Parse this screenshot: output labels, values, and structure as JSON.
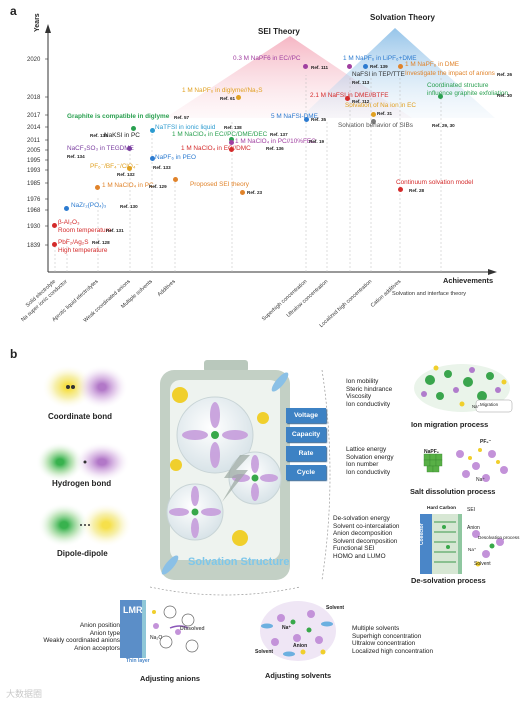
{
  "panel_a": {
    "label": "a",
    "y_axis_label": "Years",
    "x_axis_label": "Achievements",
    "sei_theory_label": "SEI Theory",
    "solvation_theory_label": "Solvation Theory",
    "x_right_label": "Solvation and interface theory",
    "years": [
      "2020",
      "2018",
      "2017",
      "2014",
      "2011",
      "2005",
      "1995",
      "1993",
      "1985",
      "1976",
      "1968",
      "1930",
      "1839"
    ],
    "x_categories": [
      "Solid electrolyte",
      "Na super ionic conductor",
      "Aprotic liquid electrolytes",
      "Weak coordinated anions",
      "Multiple solvents",
      "Additives",
      "Superhigh concentration",
      "Ultralow concentration",
      "Localized high concentration",
      "Cation additives"
    ],
    "events": [
      {
        "text": "β-Al₂O₃",
        "color": "#d42b2b"
      },
      {
        "text": "Room temperature",
        "color": "#d42b2b"
      },
      {
        "text": "PbF₂/Ag₂S",
        "color": "#d42b2b"
      },
      {
        "text": "High temperature",
        "color": "#d42b2b"
      },
      {
        "text": "Ref. 128",
        "color": "#222"
      },
      {
        "text": "Ref. 131",
        "color": "#222"
      },
      {
        "text": "NaZr₂(PO₄)₃",
        "color": "#2c7bd0"
      },
      {
        "text": "Ref. 130",
        "color": "#222"
      },
      {
        "text": "1 M NaClO₄ in PC",
        "color": "#e0832a"
      },
      {
        "text": "Ref. 129",
        "color": "#222"
      },
      {
        "text": "PF₆⁻/BF₄⁻/ClO₄⁻",
        "color": "#e0a020"
      },
      {
        "text": "Ref. 132",
        "color": "#222"
      },
      {
        "text": "NaCF₃SO₃ in TEGDME",
        "color": "#7b3fa0"
      },
      {
        "text": "Ref. 134",
        "color": "#222"
      },
      {
        "text": "NaKSI in PC",
        "color": "#222"
      },
      {
        "text": "Ref. 135",
        "color": "#222"
      },
      {
        "text": "Graphite is compatible in diglyme",
        "color": "#2aa050"
      },
      {
        "text": "Ref. 57",
        "color": "#222"
      },
      {
        "text": "NaTFSI in ionic liquid",
        "color": "#2c9bd0"
      },
      {
        "text": "Ref. 138",
        "color": "#222"
      },
      {
        "text": "1 M NaClO₄ in EC//PC/DME/DEC",
        "color": "#2aa050"
      },
      {
        "text": "Ref. 137",
        "color": "#222"
      },
      {
        "text": "1 M NaClO₄ in PC//10%FEC",
        "color": "#a03fa0"
      },
      {
        "text": "Ref. 19",
        "color": "#222"
      },
      {
        "text": "1 M NaClO₄ in EC//DMC",
        "color": "#d42b2b"
      },
      {
        "text": "Ref. 136",
        "color": "#222"
      },
      {
        "text": "NaPF₆ in PEO",
        "color": "#2c7bd0"
      },
      {
        "text": "Ref. 133",
        "color": "#222"
      },
      {
        "text": "Proposed SEI theory",
        "color": "#e0832a"
      },
      {
        "text": "Ref. 23",
        "color": "#222"
      },
      {
        "text": "1 M NaPF₆ in diglyme//Na₃S",
        "color": "#e0a020"
      },
      {
        "text": "Ref. 61",
        "color": "#222"
      },
      {
        "text": "0.3 M NaPF6 in EC//PC",
        "color": "#a03fa0"
      },
      {
        "text": "Ref. 111",
        "color": "#222"
      },
      {
        "text": "5 M NaFSI-DME",
        "color": "#2c7bd0"
      },
      {
        "text": "Ref. 35",
        "color": "#222"
      },
      {
        "text": "1 M NaPF₆ in LiPF₆+DME",
        "color": "#2c7bd0"
      },
      {
        "text": "Ref. 139",
        "color": "#222"
      },
      {
        "text": "NaFSI in TEP/TTE",
        "color": "#333"
      },
      {
        "text": "Ref. 113",
        "color": "#222"
      },
      {
        "text": "1 M NaPF₆ in DME",
        "color": "#e0832a"
      },
      {
        "text": "Investigate the impact of anions",
        "color": "#e0832a"
      },
      {
        "text": "Ref. 26",
        "color": "#222"
      },
      {
        "text": "2.1 M NaFSI in DME//BTFE",
        "color": "#d42b2b"
      },
      {
        "text": "Ref. 112",
        "color": "#222"
      },
      {
        "text": "Coordinated structure",
        "color": "#2aa050"
      },
      {
        "text": "influence graphite exfoliation",
        "color": "#2aa050"
      },
      {
        "text": "Ref. 30",
        "color": "#222"
      },
      {
        "text": "Solvation of Na ion in EC",
        "color": "#e0a020"
      },
      {
        "text": "Ref. 31",
        "color": "#222"
      },
      {
        "text": "Solvation behavior of SIBs",
        "color": "#555"
      },
      {
        "text": "Ref. 29, 30",
        "color": "#222"
      },
      {
        "text": "Continuum solvation model",
        "color": "#d42b2b"
      },
      {
        "text": "Ref. 28",
        "color": "#222"
      }
    ]
  },
  "panel_b": {
    "label": "b",
    "bonds": [
      "Coordinate bond",
      "Hydrogen bond",
      "Dipole-dipole"
    ],
    "center_label": "Solvation Structure",
    "tabs": [
      "Voltage",
      "Capacity",
      "Rate",
      "Cycle"
    ],
    "migration": {
      "list": [
        "Ion mobility",
        "Steric hindrance",
        "Viscosity",
        "Ion conductivity"
      ],
      "title": "Ion migration process",
      "inset": "Migration",
      "na": "Na⁺"
    },
    "dissolution": {
      "list": [
        "Lattice energy",
        "Solvation energy",
        "Ion number",
        "Ion conductivity"
      ],
      "title": "Salt dissolution process",
      "salt": "NaPF₆",
      "anion": "PF₆⁻",
      "cation": "Na⁺"
    },
    "desolvation": {
      "list": [
        "De-solvation energy",
        "Solvent co-intercalation",
        "Anion decomposition",
        "Solvent decomposition",
        "Functional SEI",
        "HOMO and LUMO"
      ],
      "title": "De-solvation process",
      "hard_carbon": "Hard Carbon",
      "collector": "Collector",
      "sei": "SEI",
      "anion": "Anion",
      "process": "Desolvation process",
      "na": "Na⁺",
      "solvent": "Solvent"
    },
    "anions": {
      "list": [
        "Anion position",
        "Anion type",
        "Weakly coordinated anions",
        "Anion acceptors"
      ],
      "title": "Adjusting anions",
      "lmr": "LMR",
      "thin_layer": "Thin layer",
      "dissolved": "Dissolved",
      "na2o": "Na₂O"
    },
    "solvents": {
      "list": [
        "Multiple solvents",
        "Superhigh concentration",
        "Ultralow concentration",
        "Localized high concentration"
      ],
      "title": "Adjusting solvents",
      "solvent": "Solvent",
      "anion": "Anion",
      "na": "Na⁺"
    },
    "watermark": "大数据圈"
  }
}
